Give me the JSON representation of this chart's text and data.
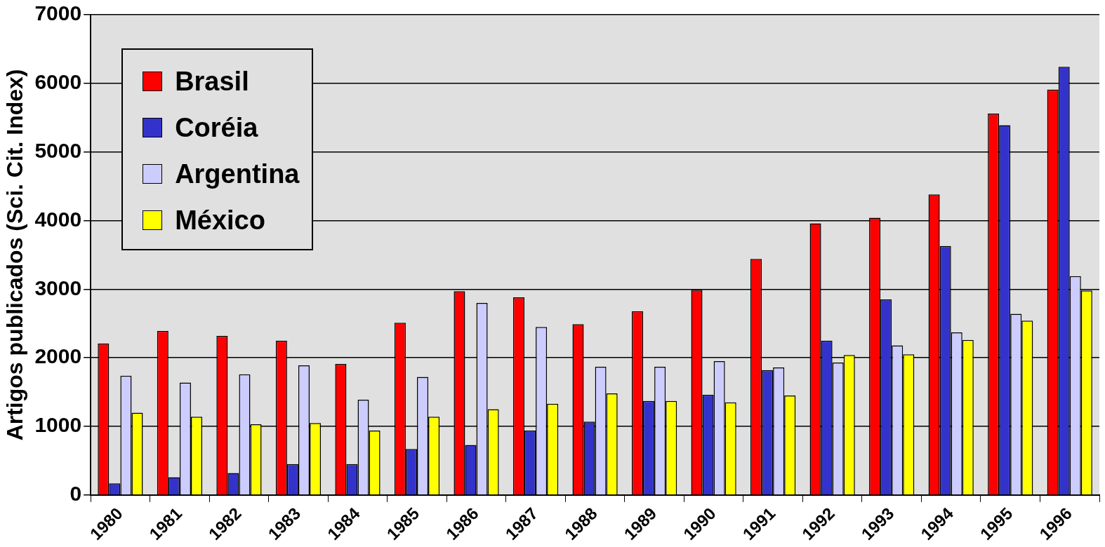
{
  "chart_data": {
    "type": "bar",
    "ylabel": "Artigos publicados (Sci. Cit. Index)",
    "categories": [
      "1980",
      "1981",
      "1982",
      "1983",
      "1984",
      "1985",
      "1986",
      "1987",
      "1988",
      "1989",
      "1990",
      "1991",
      "1992",
      "1993",
      "1994",
      "1995",
      "1996"
    ],
    "series": [
      {
        "name": "Brasil",
        "color": "#ff0000",
        "values": [
          2210,
          2390,
          2320,
          2250,
          1910,
          2510,
          2970,
          2880,
          2490,
          2680,
          2990,
          3440,
          3960,
          4040,
          4380,
          5560,
          5910
        ]
      },
      {
        "name": "Coréia",
        "color": "#3333cc",
        "values": [
          170,
          260,
          320,
          450,
          450,
          670,
          730,
          940,
          1070,
          1370,
          1460,
          1820,
          2250,
          2850,
          3630,
          5390,
          6240
        ]
      },
      {
        "name": "Argentina",
        "color": "#ccccff",
        "values": [
          1740,
          1640,
          1760,
          1890,
          1390,
          1720,
          2800,
          2450,
          1870,
          1870,
          1950,
          1860,
          1930,
          2180,
          2370,
          2640,
          3190
        ]
      },
      {
        "name": "México",
        "color": "#ffff00",
        "values": [
          1200,
          1140,
          1030,
          1050,
          940,
          1140,
          1250,
          1330,
          1480,
          1370,
          1350,
          1450,
          2040,
          2050,
          2260,
          2540,
          2980
        ]
      }
    ],
    "ylim": [
      0,
      7000
    ],
    "yticks": [
      0,
      1000,
      2000,
      3000,
      4000,
      5000,
      6000,
      7000
    ],
    "grid": "y",
    "legend": "top left"
  }
}
